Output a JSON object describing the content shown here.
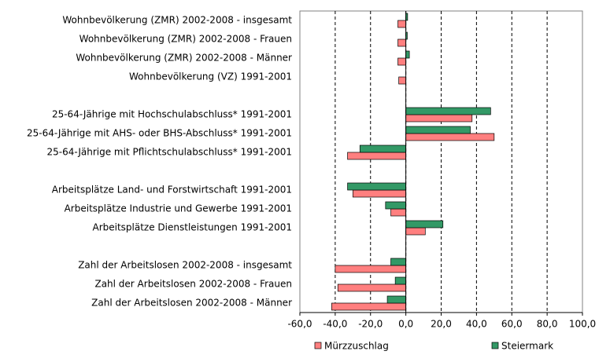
{
  "chart_data": {
    "type": "hbar",
    "categories": [
      "Wohnbevölkerung (ZMR) 2002-2008 - insgesamt",
      "Wohnbevölkerung (ZMR) 2002-2008 - Frauen",
      "Wohnbevölkerung (ZMR) 2002-2008 - Männer",
      "Wohnbevölkerung (VZ) 1991-2001",
      null,
      "25-64-Jährige mit Hochschulabschluss* 1991-2001",
      "25-64-Jährige mit AHS- oder BHS-Abschluss* 1991-2001",
      "25-64-Jährige mit Pflichtschulabschluss* 1991-2001",
      null,
      "Arbeitsplätze Land- und Forstwirtschaft 1991-2001",
      "Arbeitsplätze Industrie und Gewerbe 1991-2001",
      "Arbeitsplätze Dienstleistungen 1991-2001",
      null,
      "Zahl der Arbeitslosen 2002-2008 - insgesamt",
      "Zahl der Arbeitslosen 2002-2008 - Frauen",
      "Zahl der Arbeitslosen 2002-2008 - Männer"
    ],
    "series": [
      {
        "name": "Mürzzuschlag",
        "color": "#ff7f7f",
        "values": [
          -4.5,
          -4.5,
          -4.5,
          -4,
          null,
          37.5,
          50,
          -33,
          null,
          -30,
          -8.5,
          11,
          null,
          -40,
          -38.5,
          -42
        ]
      },
      {
        "name": "Steiermark",
        "color": "#339966",
        "values": [
          1,
          0.8,
          2,
          0,
          null,
          48,
          36.5,
          -26,
          null,
          -33,
          -11.5,
          21,
          null,
          -8.5,
          -6,
          -10.5
        ]
      }
    ],
    "xlim": [
      -60,
      100
    ],
    "xticks": [
      {
        "value": -60,
        "label": "-60,0"
      },
      {
        "value": -40,
        "label": "-40,0"
      },
      {
        "value": -20,
        "label": "-20,0"
      },
      {
        "value": 0,
        "label": "0,0"
      },
      {
        "value": 20,
        "label": "20,0"
      },
      {
        "value": 40,
        "label": "40,0"
      },
      {
        "value": 60,
        "label": "60,0"
      },
      {
        "value": 80,
        "label": "80,0"
      },
      {
        "value": 100,
        "label": "100,0"
      }
    ],
    "grid": true,
    "legend": "bottom"
  }
}
